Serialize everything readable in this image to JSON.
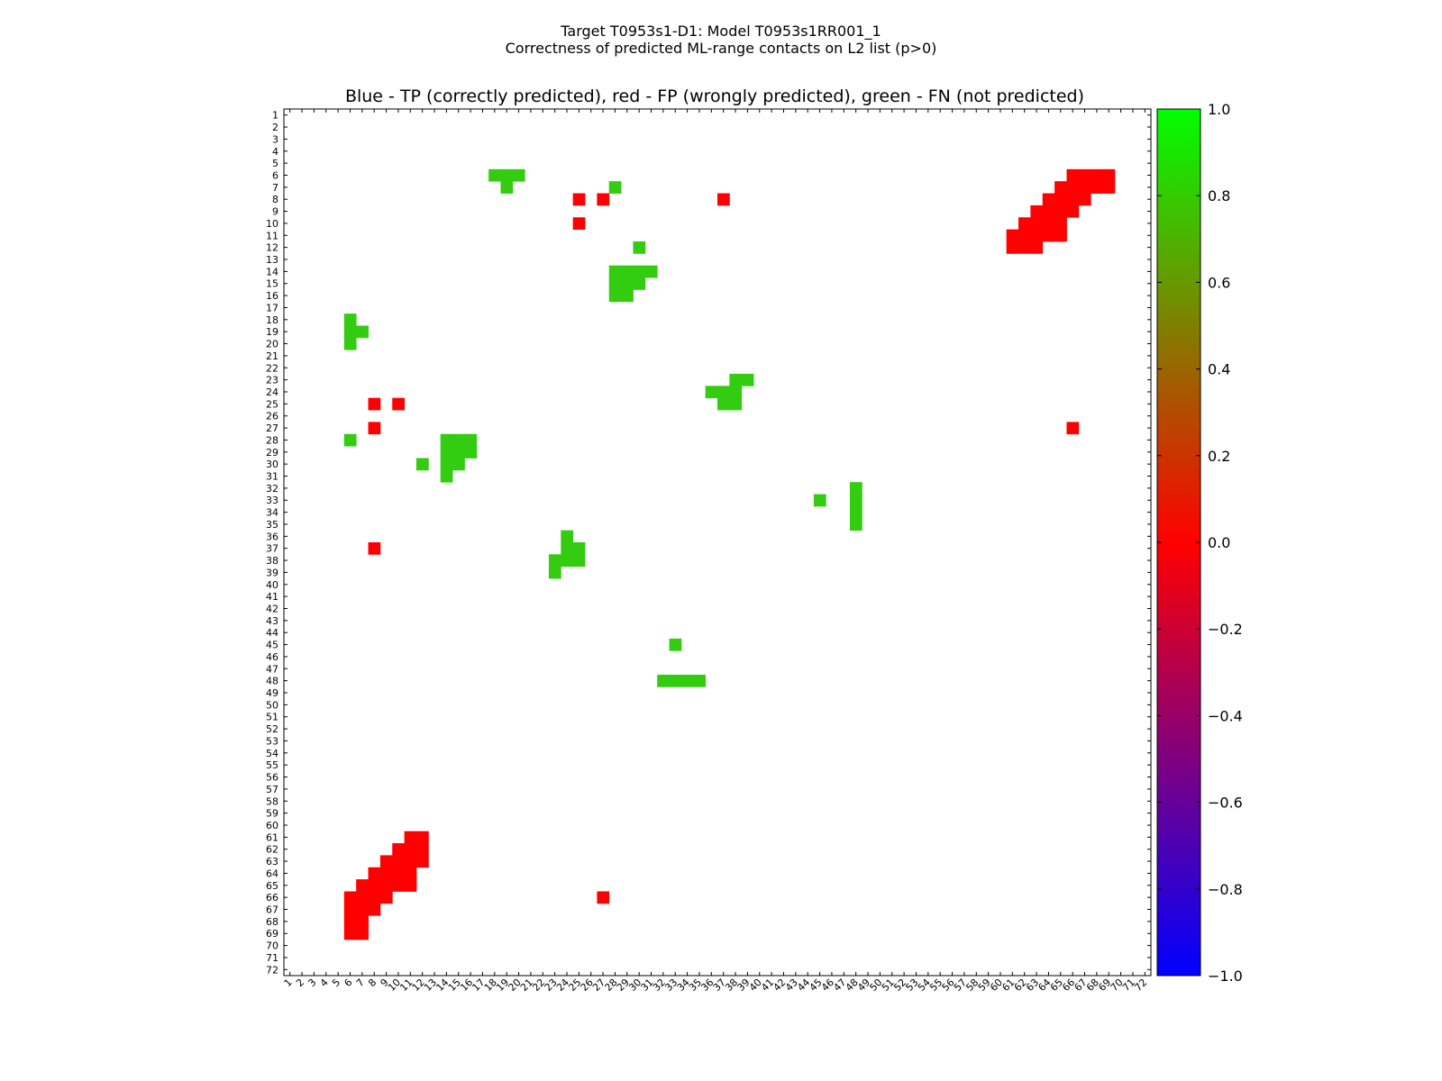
{
  "chart_data": {
    "type": "heatmap",
    "title": "Target T0953s1-D1: Model T0953s1RR001_1",
    "subtitle": "Correctness of predicted ML-range contacts on L2 list (p>0)",
    "plot_title": "Blue - TP (correctly predicted), red - FP (wrongly predicted), green - FN (not predicted)",
    "xlabel": "",
    "ylabel": "",
    "n_residues": 72,
    "x_tick_labels": [
      "1",
      "2",
      "3",
      "4",
      "5",
      "6",
      "7",
      "8",
      "9",
      "10",
      "11",
      "12",
      "13",
      "14",
      "15",
      "16",
      "17",
      "18",
      "19",
      "20",
      "21",
      "22",
      "23",
      "24",
      "25",
      "26",
      "27",
      "28",
      "29",
      "30",
      "31",
      "32",
      "33",
      "34",
      "35",
      "36",
      "37",
      "38",
      "39",
      "40",
      "41",
      "42",
      "43",
      "44",
      "45",
      "46",
      "47",
      "48",
      "49",
      "50",
      "51",
      "52",
      "53",
      "54",
      "55",
      "56",
      "57",
      "58",
      "59",
      "60",
      "61",
      "62",
      "63",
      "64",
      "65",
      "66",
      "67",
      "68",
      "69",
      "70",
      "71",
      "72"
    ],
    "y_tick_labels": [
      "1",
      "2",
      "3",
      "4",
      "5",
      "6",
      "7",
      "8",
      "9",
      "10",
      "11",
      "12",
      "13",
      "14",
      "15",
      "16",
      "17",
      "18",
      "19",
      "20",
      "21",
      "22",
      "23",
      "24",
      "25",
      "26",
      "27",
      "28",
      "29",
      "30",
      "31",
      "32",
      "33",
      "34",
      "35",
      "36",
      "37",
      "38",
      "39",
      "40",
      "41",
      "42",
      "43",
      "44",
      "45",
      "46",
      "47",
      "48",
      "49",
      "50",
      "51",
      "52",
      "53",
      "54",
      "55",
      "56",
      "57",
      "58",
      "59",
      "60",
      "61",
      "62",
      "63",
      "64",
      "65",
      "66",
      "67",
      "68",
      "69",
      "70",
      "71",
      "72"
    ],
    "colorbar": {
      "min": -1.0,
      "max": 1.0,
      "tick_labels": [
        "1.0",
        "0.8",
        "0.6",
        "0.4",
        "0.2",
        "0.0",
        "−0.2",
        "−0.4",
        "−0.6",
        "−0.8",
        "−1.0"
      ],
      "gradient": [
        "#00ff00",
        "#ff0000",
        "#0000ff"
      ]
    },
    "category_colors": {
      "fp": "#ff0000",
      "fn": "#33cc11"
    },
    "cells_fn": [
      [
        6,
        18
      ],
      [
        6,
        19
      ],
      [
        6,
        20
      ],
      [
        7,
        19
      ],
      [
        19,
        6
      ],
      [
        20,
        6
      ],
      [
        18,
        6
      ],
      [
        19,
        7
      ],
      [
        28,
        7
      ],
      [
        30,
        12
      ],
      [
        28,
        14
      ],
      [
        29,
        14
      ],
      [
        30,
        14
      ],
      [
        31,
        14
      ],
      [
        28,
        15
      ],
      [
        29,
        15
      ],
      [
        30,
        15
      ],
      [
        28,
        16
      ],
      [
        29,
        16
      ],
      [
        6,
        28
      ],
      [
        14,
        28
      ],
      [
        15,
        28
      ],
      [
        16,
        28
      ],
      [
        12,
        30
      ],
      [
        14,
        29
      ],
      [
        15,
        29
      ],
      [
        16,
        29
      ],
      [
        14,
        30
      ],
      [
        15,
        30
      ],
      [
        14,
        31
      ],
      [
        38,
        23
      ],
      [
        39,
        23
      ],
      [
        36,
        24
      ],
      [
        37,
        24
      ],
      [
        38,
        24
      ],
      [
        37,
        25
      ],
      [
        38,
        25
      ],
      [
        48,
        32
      ],
      [
        48,
        33
      ],
      [
        48,
        34
      ],
      [
        48,
        35
      ],
      [
        45,
        33
      ],
      [
        24,
        36
      ],
      [
        24,
        37
      ],
      [
        25,
        37
      ],
      [
        23,
        38
      ],
      [
        24,
        38
      ],
      [
        25,
        38
      ],
      [
        23,
        39
      ],
      [
        33,
        45
      ],
      [
        32,
        48
      ],
      [
        33,
        48
      ],
      [
        34,
        48
      ],
      [
        35,
        48
      ]
    ],
    "cells_fp": [
      [
        8,
        25
      ],
      [
        10,
        25
      ],
      [
        8,
        27
      ],
      [
        8,
        37
      ],
      [
        25,
        8
      ],
      [
        27,
        8
      ],
      [
        37,
        8
      ],
      [
        25,
        10
      ],
      [
        66,
        27
      ],
      [
        27,
        66
      ],
      [
        66,
        6
      ],
      [
        67,
        6
      ],
      [
        68,
        6
      ],
      [
        69,
        6
      ],
      [
        66,
        7
      ],
      [
        67,
        7
      ],
      [
        68,
        7
      ],
      [
        69,
        7
      ],
      [
        65,
        7
      ],
      [
        66,
        8
      ],
      [
        67,
        8
      ],
      [
        64,
        8
      ],
      [
        65,
        8
      ],
      [
        64,
        9
      ],
      [
        65,
        9
      ],
      [
        66,
        9
      ],
      [
        63,
        9
      ],
      [
        62,
        10
      ],
      [
        63,
        10
      ],
      [
        64,
        10
      ],
      [
        65,
        10
      ],
      [
        61,
        11
      ],
      [
        62,
        11
      ],
      [
        63,
        11
      ],
      [
        64,
        11
      ],
      [
        65,
        11
      ],
      [
        61,
        12
      ],
      [
        62,
        12
      ],
      [
        63,
        12
      ],
      [
        11,
        61
      ],
      [
        12,
        61
      ],
      [
        10,
        62
      ],
      [
        11,
        62
      ],
      [
        12,
        62
      ],
      [
        9,
        63
      ],
      [
        10,
        63
      ],
      [
        11,
        63
      ],
      [
        12,
        63
      ],
      [
        8,
        64
      ],
      [
        9,
        64
      ],
      [
        10,
        64
      ],
      [
        11,
        64
      ],
      [
        7,
        65
      ],
      [
        8,
        65
      ],
      [
        9,
        65
      ],
      [
        10,
        65
      ],
      [
        11,
        65
      ],
      [
        6,
        66
      ],
      [
        7,
        66
      ],
      [
        8,
        66
      ],
      [
        9,
        66
      ],
      [
        6,
        67
      ],
      [
        7,
        67
      ],
      [
        8,
        67
      ],
      [
        6,
        68
      ],
      [
        7,
        68
      ],
      [
        6,
        69
      ],
      [
        7,
        69
      ]
    ]
  }
}
